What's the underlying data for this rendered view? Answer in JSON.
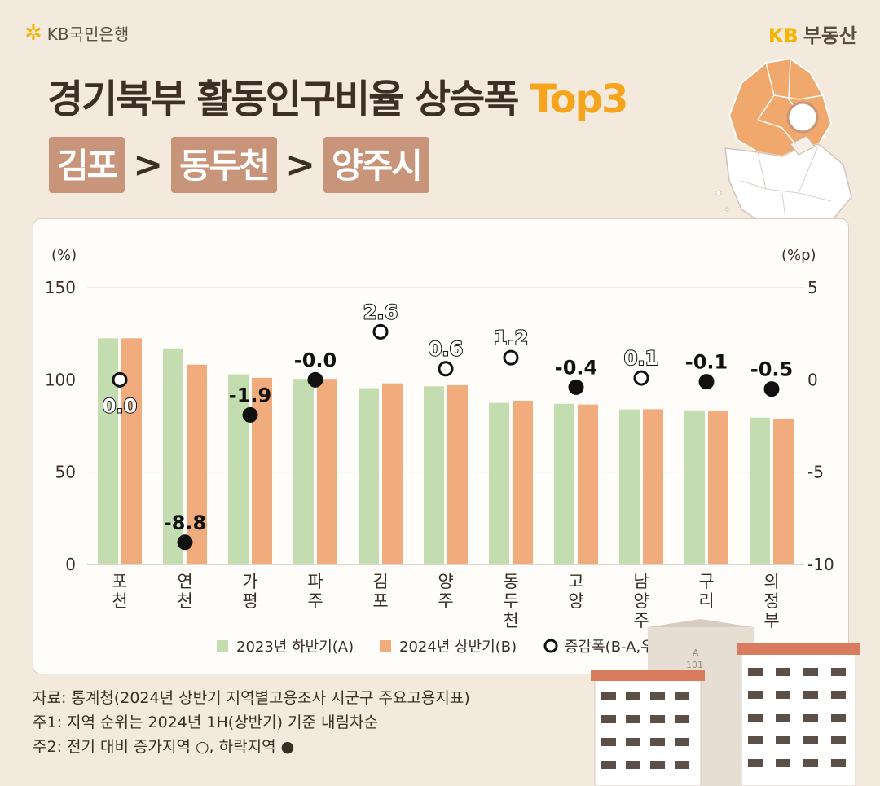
{
  "brand": {
    "bank": "KB국민은행",
    "right_kb": "KB",
    "right_name": "부동산"
  },
  "title": {
    "main": "경기북부 활동인구비율 상승폭",
    "highlight": "Top3"
  },
  "ranking": {
    "first": "김포",
    "second": "동두천",
    "third": "양주시",
    "separator": ">"
  },
  "chart_data": {
    "type": "bar",
    "categories": [
      "포천",
      "연천",
      "가평",
      "파주",
      "김포",
      "양주",
      "동두천",
      "고양",
      "남양주",
      "구리",
      "의정부"
    ],
    "series": [
      {
        "name": "2023년 하반기(A)",
        "values": [
          122.5,
          117.0,
          103.0,
          100.5,
          95.5,
          96.5,
          87.5,
          87.0,
          84.0,
          83.5,
          79.5
        ],
        "color": "#c3ddb0",
        "axis": "left"
      },
      {
        "name": "2024년 상반기(B)",
        "values": [
          122.5,
          108.2,
          101.1,
          100.5,
          98.1,
          97.1,
          88.7,
          86.6,
          84.1,
          83.4,
          79.0
        ],
        "color": "#f0ac7d",
        "axis": "left"
      },
      {
        "name": "증감폭(B-A,우)",
        "type": "scatter",
        "values": [
          0.0,
          -8.8,
          -1.9,
          -0.0,
          2.6,
          0.6,
          1.2,
          -0.4,
          0.1,
          -0.1,
          -0.5
        ],
        "labels": [
          "0.0",
          "-8.8",
          "-1.9",
          "-0.0",
          "2.6",
          "0.6",
          "1.2",
          "-0.4",
          "0.1",
          "-0.1",
          "-0.5"
        ],
        "axis": "right"
      }
    ],
    "ylabel_left": "(%)",
    "ylabel_right": "(%p)",
    "ylim_left": [
      0,
      150
    ],
    "ylim_right": [
      -10,
      5
    ],
    "yticks_left": [
      "0",
      "50",
      "100",
      "150"
    ],
    "yticks_right": [
      "-10",
      "-5",
      "0",
      "5"
    ],
    "grid": true,
    "legend_position": "bottom"
  },
  "notes": [
    "자료: 통계청(2024년 상반기 지역별고용조사 시군구 주요고용지표)",
    "주1: 지역 순위는 2024년 1H(상반기) 기준 내림차순",
    "주2: 전기 대비 증가지역 ○, 하락지역 ●"
  ],
  "building_label": {
    "block": "A",
    "number": "101"
  }
}
